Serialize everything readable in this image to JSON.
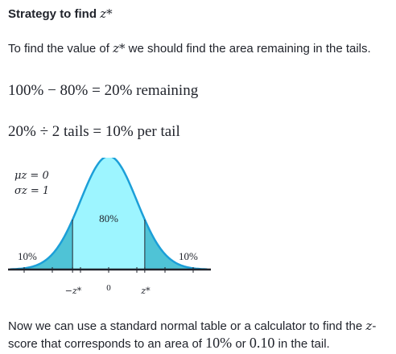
{
  "heading": {
    "text": "Strategy to find",
    "var": "z*"
  },
  "intro": {
    "before": "To find the value of",
    "var": "z*",
    "after": "we should find the area remaining in the tails."
  },
  "equations": {
    "remaining": "100% − 80% = 20% remaining",
    "per_tail": "20% ÷ 2 tails = 10% per tail"
  },
  "graph": {
    "mu_label": "μz = 0",
    "sigma_label": "σz = 1",
    "center_label": "80%",
    "left_tail_label": "10%",
    "right_tail_label": "10%",
    "tick_neg": "−z*",
    "tick_zero": "0",
    "tick_pos": "z*",
    "colors": {
      "center": "#9df5ff",
      "tails": "#4fc3d6",
      "curve": "#1c9fd8",
      "axis": "#21242c"
    }
  },
  "outro": {
    "part1": "Now we can use a standard normal table or a calculator to find the",
    "var": "z",
    "part2": "-score that corresponds to an area of",
    "value1": "10%",
    "or": "or",
    "value2": "0.10",
    "part3": "in the tail."
  }
}
